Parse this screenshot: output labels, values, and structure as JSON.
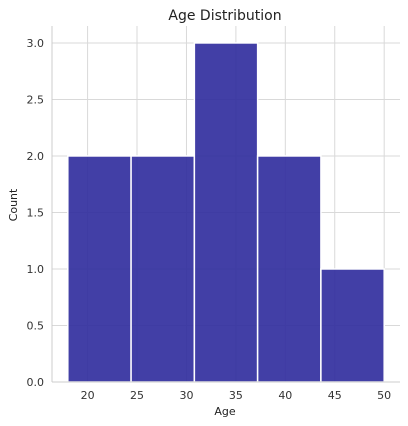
{
  "chart_data": {
    "type": "bar",
    "subtype": "histogram",
    "title": "Age Distribution",
    "xlabel": "Age",
    "ylabel": "Count",
    "bins": [
      {
        "start": 18.0,
        "end": 24.4,
        "count": 2
      },
      {
        "start": 24.4,
        "end": 30.8,
        "count": 2
      },
      {
        "start": 30.8,
        "end": 37.2,
        "count": 3
      },
      {
        "start": 37.2,
        "end": 43.6,
        "count": 2
      },
      {
        "start": 43.6,
        "end": 50.0,
        "count": 1
      }
    ],
    "xlim": [
      16.4,
      51.6
    ],
    "ylim": [
      0,
      3.15
    ],
    "xticks": [
      20,
      25,
      30,
      35,
      40,
      45,
      50
    ],
    "xtick_labels": [
      "20",
      "25",
      "30",
      "35",
      "40",
      "45",
      "50"
    ],
    "yticks": [
      0,
      0.5,
      1.0,
      1.5,
      2.0,
      2.5,
      3.0
    ],
    "ytick_labels": [
      "0.0",
      "0.5",
      "1.0",
      "1.5",
      "2.0",
      "2.5",
      "3.0"
    ],
    "grid": true,
    "bar_color": "#2e2a9c",
    "bar_edge_color": "#ffffff",
    "grid_color": "#d9d9d9",
    "axis_color": "#cccccc"
  }
}
